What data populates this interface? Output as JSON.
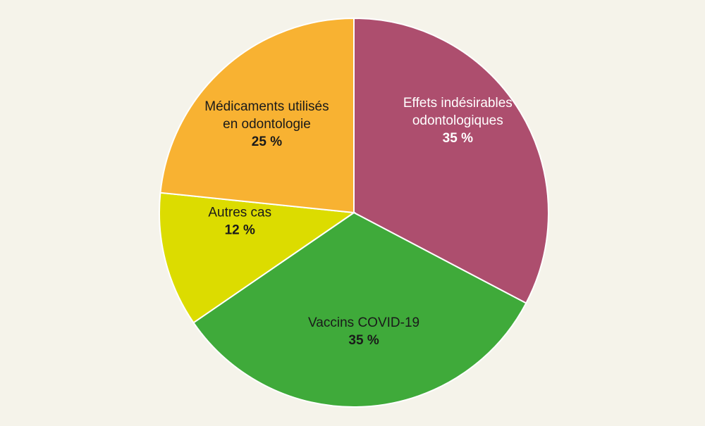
{
  "chart_data": {
    "type": "pie",
    "start_angle_deg": 0,
    "direction": "clockwise",
    "slices": [
      {
        "label_lines": [
          "Effets indésirables",
          "odontologiques"
        ],
        "value": 35,
        "value_label": "35 %",
        "color": "#ad4e6e",
        "text_color": "#ffffff"
      },
      {
        "label_lines": [
          "Vaccins COVID-19"
        ],
        "value": 35,
        "value_label": "35 %",
        "color": "#3faa3a",
        "text_color": "#1a1a1a"
      },
      {
        "label_lines": [
          "Autres cas"
        ],
        "value": 12,
        "value_label": "12 %",
        "color": "#dcdc00",
        "text_color": "#1a1a1a"
      },
      {
        "label_lines": [
          "Médicaments utilisés",
          "en odontologie"
        ],
        "value": 25,
        "value_label": "25 %",
        "color": "#f8b232",
        "text_color": "#1a1a1a"
      }
    ]
  }
}
